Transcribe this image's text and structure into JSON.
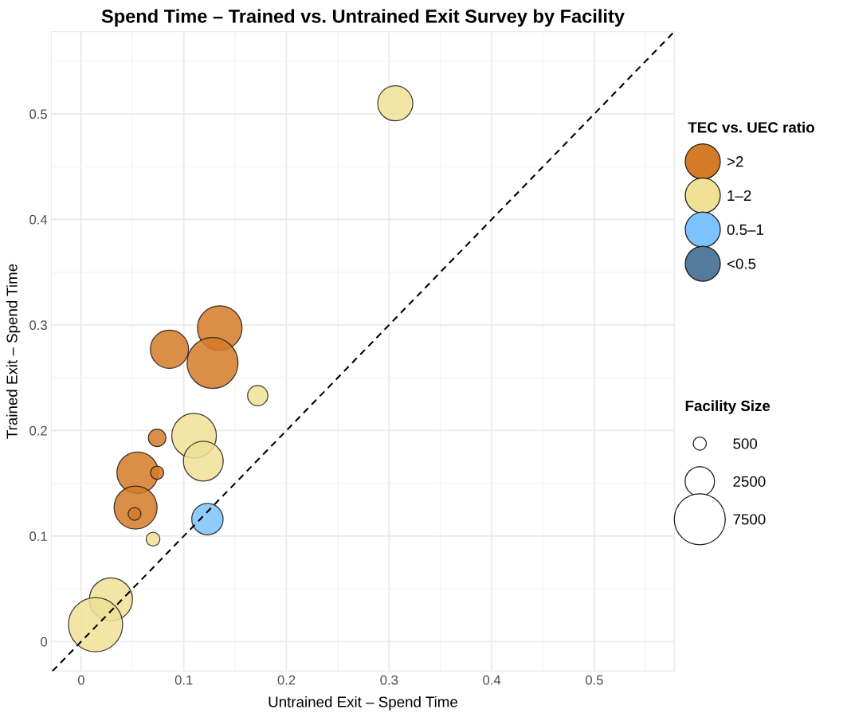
{
  "chart_data": {
    "type": "bubble",
    "title": "Spend Time – Trained vs. Untrained Exit Survey by Facility",
    "xlabel": "Untrained Exit – Spend Time",
    "ylabel": "Trained Exit – Spend Time",
    "legend_title": "TEC vs. UEC ratio",
    "annotations": [
      "Facility Size"
    ],
    "size_legend": [
      500,
      2500,
      7500
    ],
    "xlim": [
      -0.029,
      0.578
    ],
    "ylim": [
      -0.028,
      0.578
    ],
    "xticks": [
      0,
      0.1,
      0.2,
      0.3,
      0.4,
      0.5
    ],
    "yticks": [
      0,
      0.1,
      0.2,
      0.3,
      0.4,
      0.5
    ],
    "grid": true,
    "legend": "right",
    "marker": "circle",
    "series": [
      {
        "type": "line",
        "color": "#000000",
        "line_style": "dashed",
        "marker": "none",
        "x": [
          -0.028,
          0.578
        ],
        "values": [
          -0.028,
          0.578
        ]
      },
      {
        "name": ">2",
        "color": "#d57a27",
        "x": [
          0.135,
          0.086,
          0.128,
          0.074,
          0.055,
          0.074,
          0.053,
          0.052
        ],
        "values": [
          0.297,
          0.277,
          0.264,
          0.193,
          0.16,
          0.16,
          0.127,
          0.121
        ],
        "sizes": [
          5740,
          4220,
          7500,
          890,
          4950,
          500,
          5340,
          470
        ]
      },
      {
        "name": "1–2",
        "color": "#f0e096",
        "x": [
          0.306,
          0.172,
          0.11,
          0.119,
          0.07,
          0.029,
          0.014
        ],
        "values": [
          0.51,
          0.233,
          0.195,
          0.171,
          0.097,
          0.04,
          0.016
        ],
        "sizes": [
          3550,
          1180,
          5740,
          4580,
          550,
          5340,
          8470
        ]
      },
      {
        "name": "0.5–1",
        "color": "#7dc2fe",
        "x": [
          0.123
        ],
        "values": [
          0.116
        ],
        "sizes": [
          2840
        ]
      },
      {
        "name": "<0.5",
        "color": "#547a9c"
      }
    ]
  }
}
